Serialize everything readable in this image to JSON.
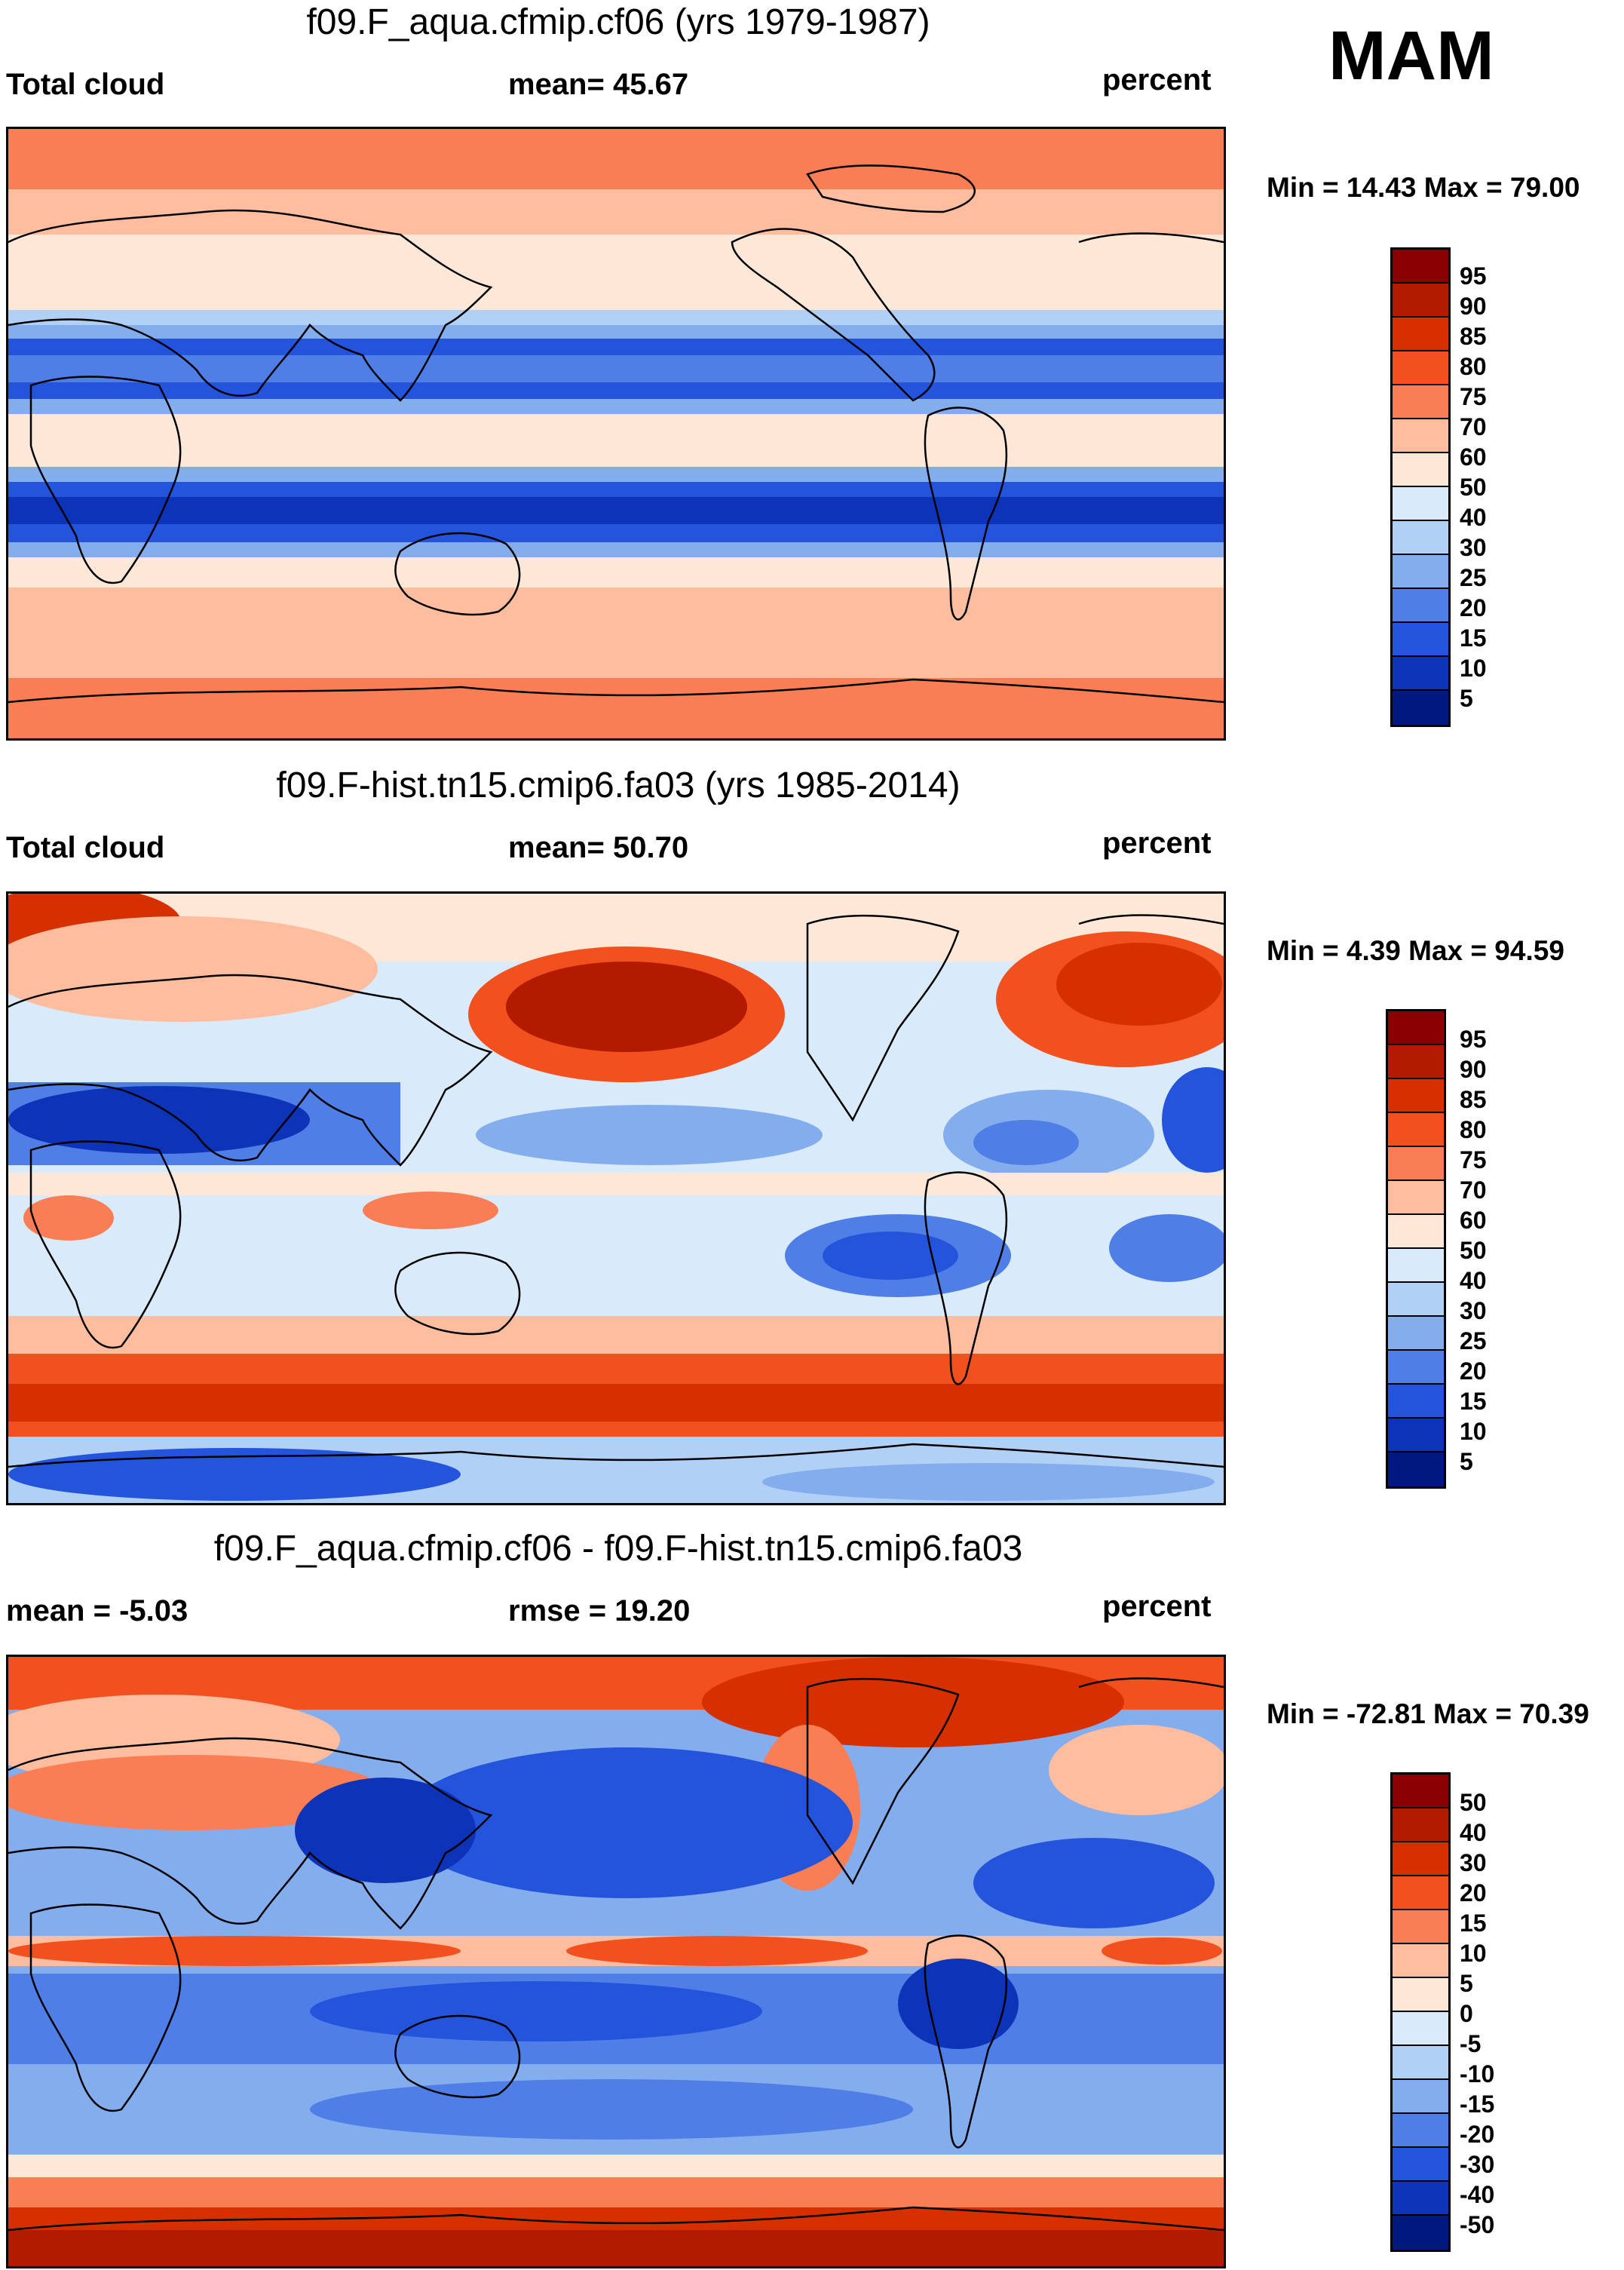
{
  "season": "MAM",
  "colors": {
    "abs": [
      "#8b0000",
      "#b31b00",
      "#d63000",
      "#f2501f",
      "#fa7e55",
      "#fdbd9e",
      "#fde8d8",
      "#d9ebfb",
      "#b0d0f5",
      "#84adee",
      "#4f7fe6",
      "#2554dc",
      "#0d34b8",
      "#001880"
    ],
    "diff": [
      "#8b0000",
      "#b31b00",
      "#d63000",
      "#f2501f",
      "#fa7e55",
      "#fdbd9e",
      "#fde8d8",
      "#d9ebfb",
      "#b0d0f5",
      "#84adee",
      "#4f7fe6",
      "#2554dc",
      "#0d34b8",
      "#001880"
    ]
  },
  "panels": [
    {
      "title": "f09.F_aqua.cfmip.cf06 (yrs 1979-1987)",
      "left_label": "Total cloud",
      "center_label": "mean=  45.67",
      "right_label": "percent",
      "minmax": "Min =  14.43 Max =  79.00",
      "ticks": [
        "95",
        "90",
        "85",
        "80",
        "75",
        "70",
        "60",
        "50",
        "40",
        "30",
        "25",
        "20",
        "15",
        "10",
        "5"
      ]
    },
    {
      "title": "f09.F-hist.tn15.cmip6.fa03 (yrs 1985-2014)",
      "left_label": "Total cloud",
      "center_label": "mean=  50.70",
      "right_label": "percent",
      "minmax": "Min =   4.39 Max =  94.59",
      "ticks": [
        "95",
        "90",
        "85",
        "80",
        "75",
        "70",
        "60",
        "50",
        "40",
        "30",
        "25",
        "20",
        "15",
        "10",
        "5"
      ]
    },
    {
      "title": "f09.F_aqua.cfmip.cf06 - f09.F-hist.tn15.cmip6.fa03",
      "left_label": "mean =  -5.03",
      "center_label": "rmse =  19.20",
      "right_label": "percent",
      "minmax": "Min = -72.81 Max =  70.39",
      "ticks": [
        "50",
        "40",
        "30",
        "20",
        "15",
        "10",
        "5",
        "0",
        "-5",
        "-10",
        "-15",
        "-20",
        "-30",
        "-40",
        "-50"
      ]
    }
  ]
}
